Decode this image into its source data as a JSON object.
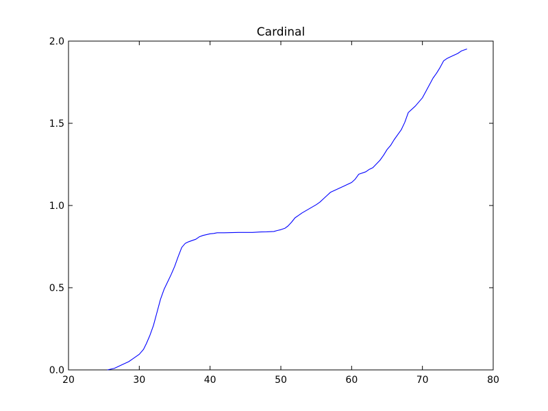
{
  "chart_data": {
    "type": "line",
    "title": "Cardinal",
    "xlabel": "",
    "ylabel": "",
    "xlim": [
      20,
      80
    ],
    "ylim": [
      0.0,
      2.0
    ],
    "xticks": [
      20,
      30,
      40,
      50,
      60,
      70,
      80
    ],
    "xtick_labels": [
      "20",
      "30",
      "40",
      "50",
      "60",
      "70",
      "80"
    ],
    "yticks": [
      0.0,
      0.5,
      1.0,
      1.5,
      2.0
    ],
    "ytick_labels": [
      "0.0",
      "0.5",
      "1.0",
      "1.5",
      "2.0"
    ],
    "grid": false,
    "series": [
      {
        "color": "#0000ff",
        "x": [
          25.5,
          26.5,
          27.5,
          28.5,
          29,
          29.5,
          30,
          30.6,
          31,
          31.5,
          32,
          32.5,
          33,
          33.5,
          34,
          34.5,
          35,
          35.5,
          36,
          36.5,
          37,
          38,
          38.5,
          39,
          40,
          40.5,
          41,
          42,
          43,
          44,
          45,
          46,
          47,
          48,
          49,
          49.5,
          50,
          50.6,
          51,
          51.5,
          52,
          52.5,
          53,
          54,
          55,
          55.5,
          56,
          56.5,
          57,
          58,
          58.5,
          59,
          60,
          60.5,
          61,
          62,
          62.5,
          63,
          64,
          64.5,
          65,
          65.5,
          66,
          67,
          67.5,
          68,
          69,
          70,
          70.5,
          71,
          71.5,
          72,
          72.5,
          73,
          73.5,
          74,
          74.5,
          75,
          75.5,
          76.3
        ],
        "y": [
          0.0,
          0.01,
          0.03,
          0.05,
          0.065,
          0.08,
          0.095,
          0.125,
          0.16,
          0.21,
          0.27,
          0.35,
          0.43,
          0.49,
          0.535,
          0.58,
          0.63,
          0.69,
          0.745,
          0.77,
          0.78,
          0.795,
          0.81,
          0.818,
          0.828,
          0.83,
          0.834,
          0.834,
          0.835,
          0.836,
          0.836,
          0.836,
          0.839,
          0.84,
          0.842,
          0.848,
          0.853,
          0.862,
          0.875,
          0.898,
          0.925,
          0.94,
          0.955,
          0.98,
          1.005,
          1.02,
          1.04,
          1.06,
          1.08,
          1.1,
          1.11,
          1.12,
          1.14,
          1.16,
          1.19,
          1.205,
          1.22,
          1.23,
          1.275,
          1.305,
          1.34,
          1.365,
          1.4,
          1.46,
          1.505,
          1.565,
          1.605,
          1.655,
          1.695,
          1.735,
          1.775,
          1.805,
          1.84,
          1.88,
          1.895,
          1.905,
          1.915,
          1.925,
          1.94,
          1.952
        ]
      }
    ]
  }
}
